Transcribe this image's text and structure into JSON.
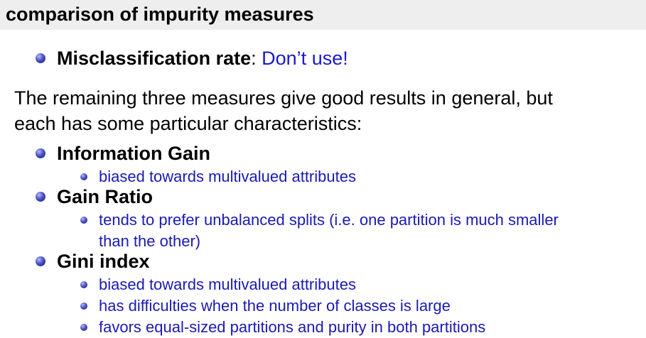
{
  "title": "comparison of impurity measures",
  "misclassification": {
    "term": "Misclassification rate",
    "separator": ":",
    "advice": "Don’t use!"
  },
  "paragraph": {
    "line1": "The remaining three measures give good results in general, but",
    "line2": "each has some particular characteristics:"
  },
  "measures": [
    {
      "name": "Information Gain",
      "notes": [
        "biased towards multivalued attributes"
      ]
    },
    {
      "name": "Gain Ratio",
      "notes": [
        "tends to prefer unbalanced splits (i.e. one partition is much smaller",
        "than the other)"
      ]
    },
    {
      "name": "Gini index",
      "notes": [
        "biased towards multivalued attributes",
        "has difficulties when the number of classes is large",
        "favors equal-sized partitions and purity in both partitions"
      ]
    }
  ]
}
